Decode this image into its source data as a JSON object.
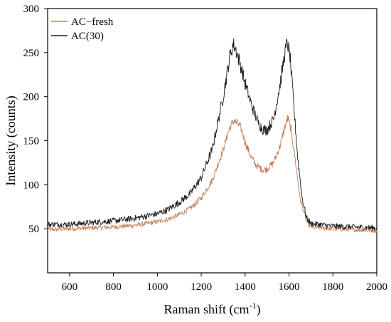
{
  "chart_data": {
    "type": "line",
    "title": "",
    "xlabel": "Raman shift (cm",
    "xlabel_sup": "-1",
    "xlabel_end": ")",
    "ylabel": "Intensity (counts)",
    "xlim": [
      500,
      2000
    ],
    "ylim": [
      0,
      300
    ],
    "x_ticks": [
      600,
      800,
      1000,
      1200,
      1400,
      1600,
      1800,
      2000
    ],
    "y_ticks": [
      50,
      100,
      150,
      200,
      250,
      300
    ],
    "grid": false,
    "legend_position": "top-left",
    "series": [
      {
        "name": "AC−fresh",
        "color": "#c8805a",
        "points": [
          [
            500,
            49
          ],
          [
            600,
            50
          ],
          [
            700,
            51
          ],
          [
            800,
            52
          ],
          [
            900,
            54
          ],
          [
            1000,
            58
          ],
          [
            1050,
            61
          ],
          [
            1100,
            66
          ],
          [
            1150,
            73
          ],
          [
            1200,
            85
          ],
          [
            1250,
            105
          ],
          [
            1300,
            140
          ],
          [
            1330,
            165
          ],
          [
            1350,
            173
          ],
          [
            1380,
            165
          ],
          [
            1400,
            148
          ],
          [
            1430,
            130
          ],
          [
            1450,
            122
          ],
          [
            1480,
            117
          ],
          [
            1500,
            118
          ],
          [
            1530,
            125
          ],
          [
            1560,
            145
          ],
          [
            1580,
            165
          ],
          [
            1595,
            176
          ],
          [
            1610,
            162
          ],
          [
            1630,
            125
          ],
          [
            1650,
            85
          ],
          [
            1680,
            58
          ],
          [
            1700,
            52
          ],
          [
            1800,
            50
          ],
          [
            1900,
            49
          ],
          [
            2000,
            48
          ]
        ]
      },
      {
        "name": "AC(30)",
        "color": "#1a1a1a",
        "points": [
          [
            500,
            55
          ],
          [
            600,
            55
          ],
          [
            700,
            57
          ],
          [
            800,
            59
          ],
          [
            900,
            62
          ],
          [
            1000,
            67
          ],
          [
            1050,
            72
          ],
          [
            1100,
            80
          ],
          [
            1150,
            90
          ],
          [
            1200,
            108
          ],
          [
            1250,
            140
          ],
          [
            1300,
            200
          ],
          [
            1330,
            245
          ],
          [
            1345,
            260
          ],
          [
            1360,
            252
          ],
          [
            1380,
            235
          ],
          [
            1400,
            215
          ],
          [
            1430,
            190
          ],
          [
            1460,
            170
          ],
          [
            1480,
            163
          ],
          [
            1500,
            162
          ],
          [
            1530,
            175
          ],
          [
            1560,
            215
          ],
          [
            1580,
            248
          ],
          [
            1592,
            262
          ],
          [
            1605,
            245
          ],
          [
            1620,
            195
          ],
          [
            1640,
            130
          ],
          [
            1660,
            85
          ],
          [
            1680,
            62
          ],
          [
            1700,
            56
          ],
          [
            1800,
            53
          ],
          [
            1900,
            52
          ],
          [
            2000,
            51
          ]
        ]
      }
    ]
  }
}
